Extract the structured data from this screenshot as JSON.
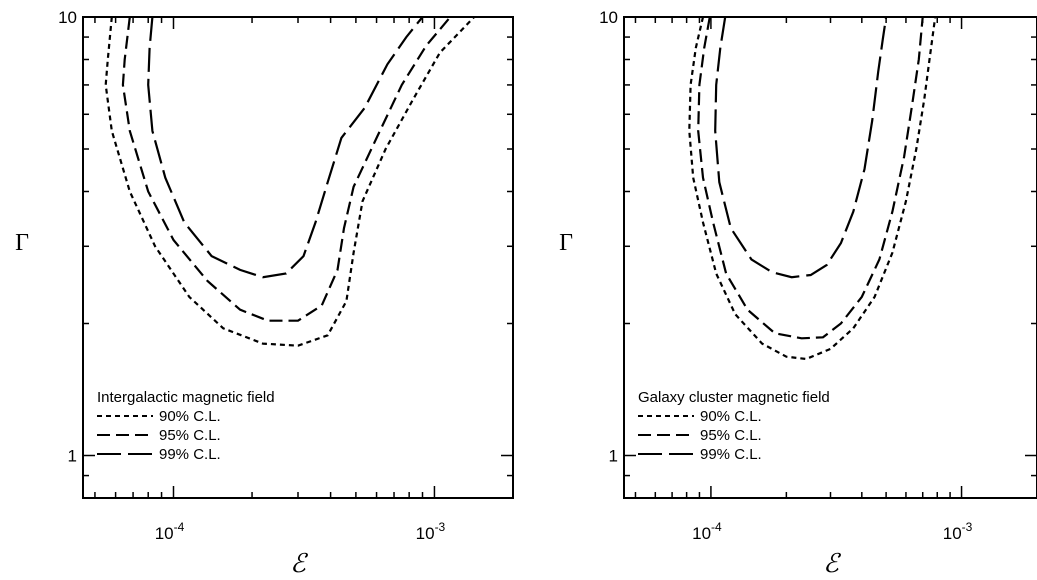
{
  "chart_data": [
    {
      "type": "line",
      "title": "",
      "xlabel": "ℰ",
      "ylabel": "Γ",
      "xscale": "log",
      "yscale": "log",
      "xlim": [
        4.5e-05,
        0.002
      ],
      "ylim": [
        0.8,
        10
      ],
      "x_tick_labels": [
        {
          "base": "10",
          "exp": "-4",
          "value": 0.0001
        },
        {
          "base": "10",
          "exp": "-3",
          "value": 0.001
        }
      ],
      "y_tick_labels": [
        {
          "text": "1",
          "value": 1
        },
        {
          "text": "10",
          "value": 10
        }
      ],
      "grid": false,
      "legend_title": "Intergalactic magnetic field",
      "legend_placement": "bottom-left",
      "series": [
        {
          "name": "90% C.L.",
          "dash": "short",
          "points": [
            [
              5.8e-05,
              10
            ],
            [
              5.6e-05,
              8.0
            ],
            [
              5.5e-05,
              7.0
            ],
            [
              5.8e-05,
              5.5
            ],
            [
              6.8e-05,
              4.0
            ],
            [
              8.5e-05,
              3.0
            ],
            [
              0.000115,
              2.3
            ],
            [
              0.000155,
              1.95
            ],
            [
              0.00022,
              1.8
            ],
            [
              0.0003,
              1.78
            ],
            [
              0.00039,
              1.88
            ],
            [
              0.00046,
              2.25
            ],
            [
              0.00049,
              2.9
            ],
            [
              0.00053,
              3.8
            ],
            [
              0.00065,
              5.0
            ],
            [
              0.00083,
              6.5
            ],
            [
              0.00105,
              8.3
            ],
            [
              0.00142,
              10
            ]
          ]
        },
        {
          "name": "95% C.L.",
          "dash": "medium",
          "points": [
            [
              6.8e-05,
              10
            ],
            [
              6.5e-05,
              8.0
            ],
            [
              6.4e-05,
              7.0
            ],
            [
              6.8e-05,
              5.5
            ],
            [
              8e-05,
              4.0
            ],
            [
              0.0001,
              3.1
            ],
            [
              0.000135,
              2.5
            ],
            [
              0.00018,
              2.15
            ],
            [
              0.00023,
              2.03
            ],
            [
              0.0003,
              2.03
            ],
            [
              0.00037,
              2.2
            ],
            [
              0.000425,
              2.65
            ],
            [
              0.00045,
              3.3
            ],
            [
              0.00049,
              4.1
            ],
            [
              0.0006,
              5.3
            ],
            [
              0.00075,
              7.0
            ],
            [
              0.00093,
              8.6
            ],
            [
              0.00115,
              10
            ]
          ]
        },
        {
          "name": "99% C.L.",
          "dash": "long",
          "points": [
            [
              8.3e-05,
              10
            ],
            [
              8.1e-05,
              8.5
            ],
            [
              8e-05,
              7.0
            ],
            [
              8.3e-05,
              5.5
            ],
            [
              9.3e-05,
              4.3
            ],
            [
              0.00011,
              3.4
            ],
            [
              0.00014,
              2.85
            ],
            [
              0.00018,
              2.65
            ],
            [
              0.00022,
              2.55
            ],
            [
              0.00027,
              2.6
            ],
            [
              0.000315,
              2.85
            ],
            [
              0.00035,
              3.4
            ],
            [
              0.00039,
              4.2
            ],
            [
              0.00044,
              5.3
            ],
            [
              0.00054,
              6.2
            ],
            [
              0.00066,
              7.8
            ],
            [
              0.00078,
              9.0
            ],
            [
              0.0009,
              10
            ]
          ]
        }
      ]
    },
    {
      "type": "line",
      "title": "",
      "xlabel": "ℰ",
      "ylabel": "Γ",
      "xscale": "log",
      "yscale": "log",
      "xlim": [
        4.5e-05,
        0.002
      ],
      "ylim": [
        0.8,
        10
      ],
      "x_tick_labels": [
        {
          "base": "10",
          "exp": "-4",
          "value": 0.0001
        },
        {
          "base": "10",
          "exp": "-3",
          "value": 0.001
        }
      ],
      "y_tick_labels": [
        {
          "text": "1",
          "value": 1
        },
        {
          "text": "10",
          "value": 10
        }
      ],
      "grid": false,
      "legend_title": "Galaxy cluster magnetic field",
      "legend_placement": "bottom-left",
      "series": [
        {
          "name": "90% C.L.",
          "dash": "short",
          "points": [
            [
              9.3e-05,
              10
            ],
            [
              8.7e-05,
              8.5
            ],
            [
              8.3e-05,
              7.0
            ],
            [
              8.2e-05,
              5.5
            ],
            [
              8.5e-05,
              4.3
            ],
            [
              9.3e-05,
              3.4
            ],
            [
              0.000105,
              2.6
            ],
            [
              0.000125,
              2.1
            ],
            [
              0.00016,
              1.8
            ],
            [
              0.0002,
              1.68
            ],
            [
              0.00024,
              1.66
            ],
            [
              0.0003,
              1.75
            ],
            [
              0.00037,
              1.95
            ],
            [
              0.00045,
              2.3
            ],
            [
              0.00053,
              2.9
            ],
            [
              0.0006,
              3.8
            ],
            [
              0.00066,
              5.0
            ],
            [
              0.00071,
              6.5
            ],
            [
              0.000745,
              8.0
            ],
            [
              0.000785,
              10
            ]
          ]
        },
        {
          "name": "95% C.L.",
          "dash": "medium",
          "points": [
            [
              9.9e-05,
              10
            ],
            [
              9.4e-05,
              8.5
            ],
            [
              9e-05,
              7.0
            ],
            [
              8.9e-05,
              5.5
            ],
            [
              9.3e-05,
              4.3
            ],
            [
              0.000102,
              3.4
            ],
            [
              0.000115,
              2.6
            ],
            [
              0.00014,
              2.15
            ],
            [
              0.00018,
              1.9
            ],
            [
              0.00023,
              1.85
            ],
            [
              0.00028,
              1.86
            ],
            [
              0.00033,
              2.0
            ],
            [
              0.0004,
              2.3
            ],
            [
              0.00047,
              2.8
            ],
            [
              0.00053,
              3.6
            ],
            [
              0.00059,
              4.8
            ],
            [
              0.000635,
              6.3
            ],
            [
              0.000675,
              8.0
            ],
            [
              0.0007,
              10
            ]
          ]
        },
        {
          "name": "99% C.L.",
          "dash": "long",
          "points": [
            [
              0.000114,
              10
            ],
            [
              0.000109,
              8.5
            ],
            [
              0.000105,
              7.0
            ],
            [
              0.000104,
              5.5
            ],
            [
              0.000108,
              4.2
            ],
            [
              0.00012,
              3.3
            ],
            [
              0.000145,
              2.8
            ],
            [
              0.000175,
              2.62
            ],
            [
              0.00021,
              2.55
            ],
            [
              0.00025,
              2.58
            ],
            [
              0.00029,
              2.72
            ],
            [
              0.00033,
              3.05
            ],
            [
              0.00037,
              3.6
            ],
            [
              0.00041,
              4.5
            ],
            [
              0.00044,
              5.8
            ],
            [
              0.000465,
              7.5
            ],
            [
              0.000485,
              8.9
            ],
            [
              0.0005,
              10
            ]
          ]
        }
      ]
    }
  ]
}
